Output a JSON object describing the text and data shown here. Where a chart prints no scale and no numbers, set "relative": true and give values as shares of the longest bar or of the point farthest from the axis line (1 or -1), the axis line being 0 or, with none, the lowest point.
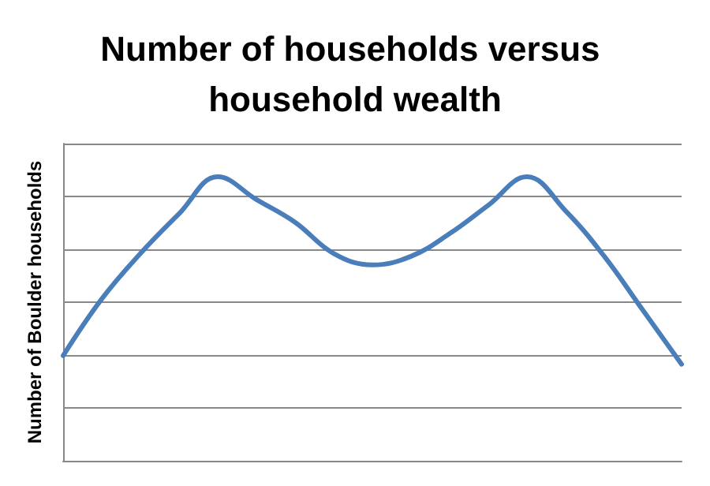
{
  "chart_data": {
    "type": "line",
    "title": "Number of households versus household wealth",
    "ylabel": "Number of Boulder households",
    "relative": true,
    "grid": "y",
    "marker": "none",
    "line_style": "solid",
    "categories": [
      null,
      null,
      null,
      null,
      null,
      null,
      null,
      null,
      null,
      null,
      null,
      null,
      null,
      null,
      null,
      null,
      null
    ],
    "series": [
      {
        "color": "#4a7ebb",
        "values": [
          0.37,
          0.57,
          0.73,
          0.87,
          1.0,
          0.92,
          0.84,
          0.73,
          0.69,
          0.72,
          0.8,
          0.9,
          1.0,
          0.88,
          0.72,
          0.53,
          0.34
        ]
      }
    ]
  }
}
